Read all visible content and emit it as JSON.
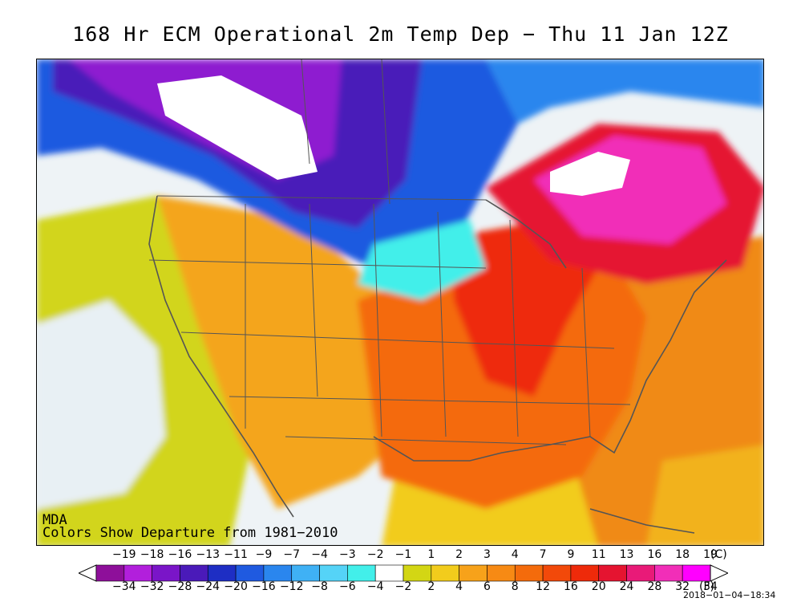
{
  "title": "168 Hr ECM Operational 2m Temp Dep − Thu 11 Jan 12Z",
  "map_notes": {
    "org": "MDA",
    "colors": "Colors Show Departure from 1981−2010"
  },
  "legend": {
    "celsius_unit": "(C)",
    "fahrenheit_unit": "(F)",
    "celsius_labels": [
      "−19",
      "−18",
      "−16",
      "−13",
      "−11",
      "−9",
      "−7",
      "−4",
      "−3",
      "−2",
      "−1",
      "1",
      "2",
      "3",
      "4",
      "7",
      "9",
      "11",
      "13",
      "16",
      "18",
      "19"
    ],
    "fahrenheit_labels": [
      "−34",
      "−32",
      "−28",
      "−24",
      "−20",
      "−16",
      "−12",
      "−8",
      "−6",
      "−4",
      "−2",
      "2",
      "4",
      "6",
      "8",
      "12",
      "16",
      "20",
      "24",
      "28",
      "32",
      "34"
    ],
    "swatches": [
      "#8e0f9a",
      "#b21fdc",
      "#7a15c8",
      "#4a1ab9",
      "#1e2ec4",
      "#1f5ae0",
      "#2a86ee",
      "#3fb1f5",
      "#55d3f7",
      "#42efea",
      "#ffffff",
      "#d3d614",
      "#f2cc1c",
      "#f7a21a",
      "#f78a14",
      "#f46b0c",
      "#f2490a",
      "#ee2a0a",
      "#e51430",
      "#e91a78",
      "#f12eb8",
      "#ff00ff"
    ]
  },
  "timestamp": "2018−01−04−18:34"
}
